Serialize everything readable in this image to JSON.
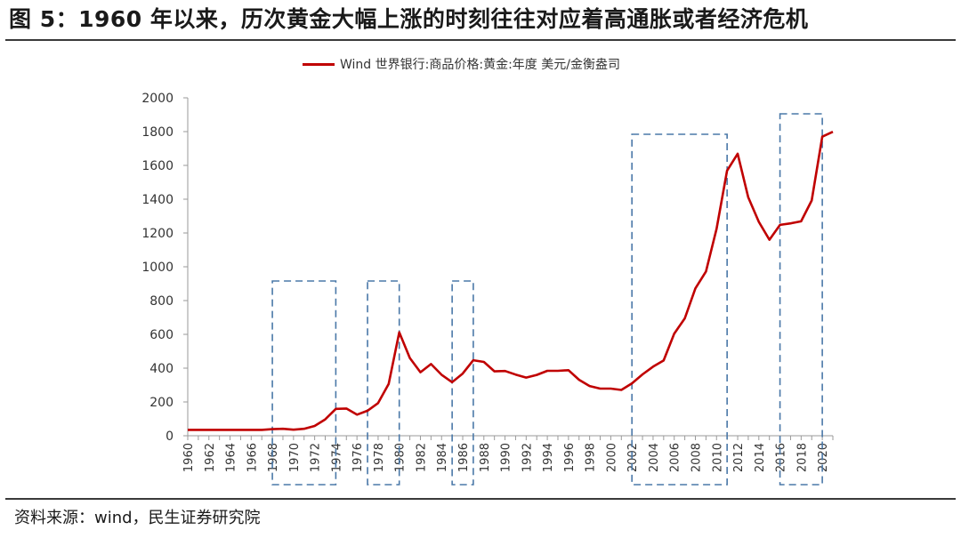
{
  "title": "图 5：1960 年以来，历次黄金大幅上涨的时刻往往对应着高通胀或者经济危机",
  "source": "资料来源：wind，民生证券研究院",
  "colors": {
    "series": "#c00000",
    "box": "#4a78a8",
    "axis": "#9a9a9a"
  },
  "chart_data": {
    "type": "line",
    "title": "图 5：1960 年以来，历次黄金大幅上涨的时刻往往对应着高通胀或者经济危机",
    "xlabel": "",
    "ylabel": "",
    "xlim": [
      1960,
      2021
    ],
    "ylim": [
      0,
      2000
    ],
    "yticks": [
      0,
      200,
      400,
      600,
      800,
      1000,
      1200,
      1400,
      1600,
      1800,
      2000
    ],
    "xtick_labels": [
      "1960",
      "1962",
      "1964",
      "1966",
      "1968",
      "1970",
      "1972",
      "1974",
      "1976",
      "1978",
      "1980",
      "1982",
      "1984",
      "1986",
      "1988",
      "1990",
      "1992",
      "1994",
      "1996",
      "1998",
      "2000",
      "2002",
      "2004",
      "2006",
      "2008",
      "2010",
      "2012",
      "2014",
      "2016",
      "2018",
      "2020"
    ],
    "legend": {
      "position": "top-center",
      "entries": [
        "Wind 世界银行:商品价格:黄金:年度 美元/金衡盎司"
      ]
    },
    "series": [
      {
        "name": "Wind 世界银行:商品价格:黄金:年度 美元/金衡盎司",
        "x": [
          1960,
          1961,
          1962,
          1963,
          1964,
          1965,
          1966,
          1967,
          1968,
          1969,
          1970,
          1971,
          1972,
          1973,
          1974,
          1975,
          1976,
          1977,
          1978,
          1979,
          1980,
          1981,
          1982,
          1983,
          1984,
          1985,
          1986,
          1987,
          1988,
          1989,
          1990,
          1991,
          1992,
          1993,
          1994,
          1995,
          1996,
          1997,
          1998,
          1999,
          2000,
          2001,
          2002,
          2003,
          2004,
          2005,
          2006,
          2007,
          2008,
          2009,
          2010,
          2011,
          2012,
          2013,
          2014,
          2015,
          2016,
          2017,
          2018,
          2019,
          2020,
          2021
        ],
        "values": [
          35,
          35,
          35,
          35,
          35,
          35,
          35,
          35,
          39,
          41,
          36,
          41,
          58,
          97,
          159,
          161,
          125,
          148,
          193,
          307,
          612,
          460,
          376,
          424,
          361,
          317,
          368,
          447,
          437,
          381,
          383,
          362,
          344,
          360,
          384,
          384,
          388,
          331,
          294,
          279,
          279,
          271,
          310,
          363,
          409,
          445,
          604,
          695,
          872,
          972,
          1225,
          1569,
          1669,
          1411,
          1266,
          1160,
          1248,
          1257,
          1269,
          1392,
          1770,
          1799
        ]
      }
    ],
    "annotation_boxes": [
      {
        "x_range": [
          1968,
          1974
        ]
      },
      {
        "x_range": [
          1977,
          1980
        ]
      },
      {
        "x_range": [
          1985,
          1987
        ]
      },
      {
        "x_range": [
          2002,
          2011
        ]
      },
      {
        "x_range": [
          2016,
          2020
        ]
      }
    ],
    "grid": false
  }
}
